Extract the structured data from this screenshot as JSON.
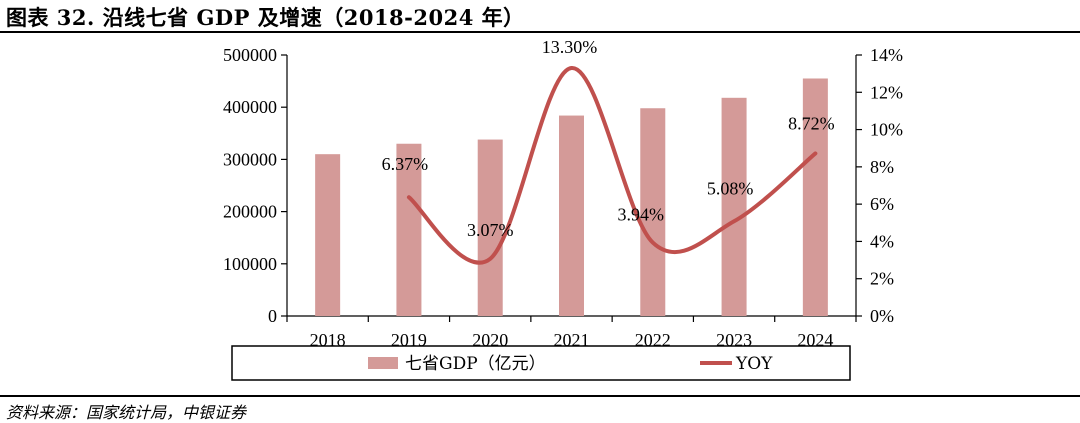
{
  "header": {
    "title": "图表 32. 沿线七省 GDP 及增速（2018-2024 年）"
  },
  "footer": {
    "source": "资料来源：国家统计局，中银证券"
  },
  "colors": {
    "bar": "#d49a98",
    "line": "#c0504d"
  },
  "chart_data": {
    "type": "bar",
    "categories": [
      "2018",
      "2019",
      "2020",
      "2021",
      "2022",
      "2023",
      "2024"
    ],
    "series": [
      {
        "name": "七省GDP（亿元）",
        "type": "bar",
        "axis": "left",
        "values": [
          310000,
          330000,
          338000,
          384000,
          398000,
          418000,
          455000
        ]
      },
      {
        "name": "YOY",
        "type": "line",
        "axis": "right",
        "smooth": true,
        "values": [
          null,
          6.37,
          3.07,
          13.3,
          3.94,
          5.08,
          8.72
        ],
        "labels": [
          "",
          "6.37%",
          "3.07%",
          "13.30%",
          "3.94%",
          "5.08%",
          "8.72%"
        ]
      }
    ],
    "y_left": {
      "min": 0,
      "max": 500000,
      "ticks": [
        "0",
        "100000",
        "200000",
        "300000",
        "400000",
        "500000"
      ]
    },
    "y_right": {
      "min": 0,
      "max": 14,
      "ticks": [
        "0%",
        "2%",
        "4%",
        "6%",
        "8%",
        "10%",
        "12%",
        "14%"
      ]
    },
    "legend_position": "bottom"
  }
}
